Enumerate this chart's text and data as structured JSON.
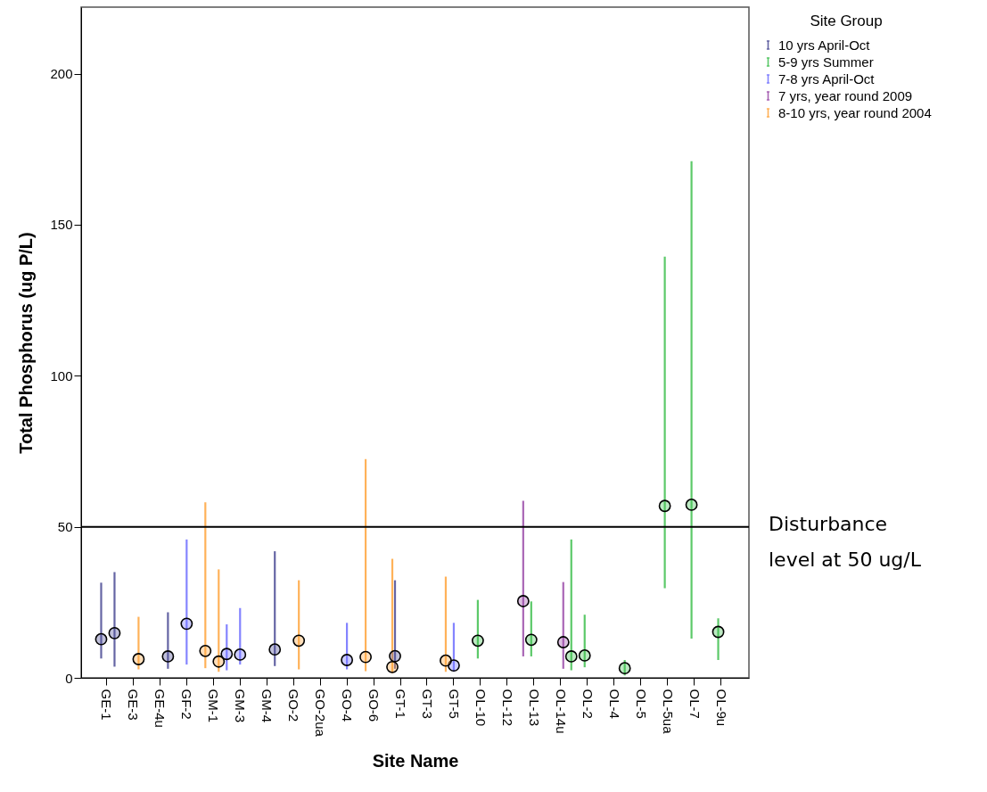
{
  "chart_data": {
    "type": "scatter",
    "xlabel": "Site Name",
    "ylabel": "Total Phosphorus (ug P/L)",
    "legend_title": "Site Group",
    "categories": [
      "GE-1",
      null,
      "GE-3",
      null,
      "GE-4u",
      null,
      "GF-2",
      null,
      "GM-1",
      null,
      "GM-3",
      null,
      "GM-4",
      null,
      "GO-2",
      null,
      "GO-2ua",
      null,
      "GO-4",
      null,
      "GO-6",
      null,
      "GT-1",
      null,
      "GT-3",
      null,
      "GT-5",
      null,
      "OL-10",
      null,
      "OL-12",
      null,
      "OL-13",
      null,
      "OL-14u",
      null,
      "OL-2",
      null,
      "OL-4",
      null,
      "OL-5",
      null,
      "OL-5ua",
      null,
      "OL-7",
      null,
      "OL-9u",
      null
    ],
    "series": [
      {
        "name": "10 yrs April-Oct",
        "color": "#4a4a94",
        "values": [
          12.8,
          14.8,
          null,
          null,
          null,
          7.1,
          null,
          null,
          null,
          null,
          null,
          null,
          null,
          9.4,
          null,
          null,
          null,
          null,
          null,
          null,
          null,
          null,
          7.2,
          null,
          null,
          null,
          null,
          null,
          null,
          null,
          null,
          null,
          null,
          null,
          null,
          null,
          null,
          null,
          null,
          null,
          null,
          null,
          null,
          null,
          null,
          null,
          null,
          null
        ],
        "errors": [
          [
            6.4,
            31.5
          ],
          [
            3.7,
            35
          ],
          null,
          null,
          null,
          [
            3,
            21.7
          ],
          null,
          null,
          null,
          null,
          null,
          null,
          null,
          [
            3.9,
            41.9
          ],
          null,
          null,
          null,
          null,
          null,
          null,
          null,
          null,
          [
            3,
            32.3
          ],
          null,
          null,
          null,
          null,
          null,
          null,
          null,
          null,
          null,
          null,
          null,
          null,
          null,
          null,
          null,
          null,
          null,
          null,
          null,
          null,
          null,
          null,
          null,
          null,
          null
        ]
      },
      {
        "name": "5-9 yrs Summer",
        "color": "#3fbf4f",
        "values": [
          null,
          null,
          null,
          null,
          null,
          null,
          null,
          null,
          null,
          null,
          null,
          null,
          null,
          null,
          null,
          null,
          null,
          null,
          null,
          null,
          null,
          null,
          null,
          null,
          null,
          null,
          null,
          null,
          12.3,
          null,
          null,
          null,
          12.6,
          null,
          null,
          7.1,
          7.4,
          null,
          null,
          3.2,
          null,
          null,
          56.9,
          null,
          57.3,
          null,
          15.2,
          null
        ],
        "errors": [
          null,
          null,
          null,
          null,
          null,
          null,
          null,
          null,
          null,
          null,
          null,
          null,
          null,
          null,
          null,
          null,
          null,
          null,
          null,
          null,
          null,
          null,
          null,
          null,
          null,
          null,
          null,
          null,
          [
            6.4,
            25.8
          ],
          null,
          null,
          null,
          [
            7.1,
            25.3
          ],
          null,
          null,
          [
            2.5,
            45.8
          ],
          [
            3.5,
            20.9
          ],
          null,
          null,
          [
            0.8,
            5.9
          ],
          null,
          null,
          [
            29.7,
            139.4
          ],
          null,
          [
            13,
            171
          ],
          null,
          [
            5.9,
            19.7
          ],
          null
        ]
      },
      {
        "name": "7-8 yrs April-Oct",
        "color": "#6f6fff",
        "values": [
          null,
          null,
          null,
          null,
          null,
          null,
          17.9,
          null,
          null,
          7.9,
          7.7,
          null,
          null,
          null,
          null,
          null,
          null,
          null,
          5.9,
          null,
          null,
          null,
          null,
          null,
          null,
          null,
          4.1,
          null,
          null,
          null,
          null,
          null,
          null,
          null,
          null,
          null,
          null,
          null,
          null,
          null,
          null,
          null,
          null,
          null,
          null,
          null,
          null,
          null
        ],
        "errors": [
          null,
          null,
          null,
          null,
          null,
          null,
          [
            4.4,
            45.8
          ],
          null,
          null,
          [
            2.5,
            17.7
          ],
          [
            4.4,
            23.1
          ],
          null,
          null,
          null,
          null,
          null,
          null,
          null,
          [
            2.8,
            18.2
          ],
          null,
          null,
          null,
          null,
          null,
          null,
          null,
          [
            2,
            18.2
          ],
          null,
          null,
          null,
          null,
          null,
          null,
          null,
          null,
          null,
          null,
          null,
          null,
          null,
          null,
          null,
          null,
          null,
          null,
          null,
          null,
          null
        ]
      },
      {
        "name": "7 yrs, year round 2009",
        "color": "#9a4aa8",
        "values": [
          null,
          null,
          null,
          null,
          null,
          null,
          null,
          null,
          null,
          null,
          null,
          null,
          null,
          null,
          null,
          null,
          null,
          null,
          null,
          null,
          null,
          null,
          null,
          null,
          null,
          null,
          null,
          null,
          null,
          null,
          null,
          25.4,
          null,
          null,
          11.8,
          null,
          null,
          null,
          null,
          null,
          null,
          null,
          null,
          null,
          null,
          null,
          null,
          null
        ],
        "errors": [
          null,
          null,
          null,
          null,
          null,
          null,
          null,
          null,
          null,
          null,
          null,
          null,
          null,
          null,
          null,
          null,
          null,
          null,
          null,
          null,
          null,
          null,
          null,
          null,
          null,
          null,
          null,
          null,
          null,
          null,
          null,
          [
            7.1,
            58.6
          ],
          null,
          null,
          [
            3,
            31.7
          ],
          null,
          null,
          null,
          null,
          null,
          null,
          null,
          null,
          null,
          null,
          null,
          null,
          null
        ]
      },
      {
        "name": "8-10 yrs, year round 2004",
        "color": "#ffa43c",
        "values": [
          null,
          null,
          6.2,
          null,
          null,
          null,
          null,
          8.9,
          5.4,
          null,
          null,
          null,
          null,
          null,
          12.3,
          null,
          null,
          null,
          null,
          6.9,
          null,
          3.6,
          null,
          null,
          null,
          5.7,
          null,
          null,
          null,
          null,
          null,
          null,
          null,
          null,
          null,
          null,
          null,
          null,
          null,
          null,
          null,
          null,
          null,
          null,
          null,
          null,
          null,
          null
        ],
        "errors": [
          null,
          null,
          [
            2.8,
            20.2
          ],
          null,
          null,
          null,
          null,
          [
            3.2,
            58.1
          ],
          [
            2,
            35.9
          ],
          null,
          null,
          null,
          null,
          null,
          [
            2.8,
            32.3
          ],
          null,
          null,
          null,
          null,
          [
            2.2,
            72.4
          ],
          null,
          [
            1.5,
            39.4
          ],
          null,
          null,
          null,
          [
            2,
            33.5
          ],
          null,
          null,
          null,
          null,
          null,
          null,
          null,
          null,
          null,
          null,
          null,
          null,
          null,
          null,
          null,
          null,
          null,
          null,
          null,
          null,
          null,
          null
        ]
      }
    ],
    "ylim": [
      0,
      222
    ],
    "yticks": [
      0,
      50,
      100,
      150,
      200
    ],
    "ref_lines": [
      {
        "axis": "y",
        "value": 50,
        "label": "Disturbance level at 50 ug/L",
        "color": "#000000"
      }
    ],
    "legend": "top right",
    "marker": "circle",
    "grid": false
  }
}
